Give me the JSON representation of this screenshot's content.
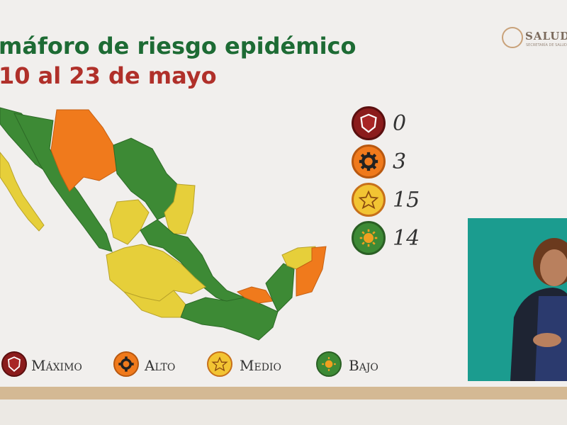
{
  "title": {
    "line1": "máforo de riesgo epidémico",
    "line2": "10 al 23 de mayo"
  },
  "logo": {
    "text": "SALUD",
    "subtext": "SECRETARÍA DE SALUD"
  },
  "colors": {
    "maximo": "#8b1c1c",
    "alto": "#f07a1c",
    "medio": "#e6cf3a",
    "bajo": "#3d8a35",
    "title_green": "#1d6b34",
    "title_red": "#b0302a"
  },
  "counts": [
    {
      "level": "maximo",
      "icon": "shield-icon",
      "value": "0"
    },
    {
      "level": "alto",
      "icon": "gear-icon",
      "value": "3"
    },
    {
      "level": "medio",
      "icon": "star-icon",
      "value": "15"
    },
    {
      "level": "bajo",
      "icon": "sun-icon",
      "value": "14"
    }
  ],
  "legend": [
    {
      "level": "maximo",
      "icon": "shield-icon",
      "label": "Máximo"
    },
    {
      "level": "alto",
      "icon": "gear-icon",
      "label": "Alto"
    },
    {
      "level": "medio",
      "icon": "star-icon",
      "label": "Medio"
    },
    {
      "level": "bajo",
      "icon": "sun-icon",
      "label": "Bajo"
    }
  ],
  "map": {
    "states_by_level": {
      "alto": [
        "Chihuahua",
        "Quintana Roo",
        "Tabasco"
      ],
      "medio": [
        "Baja California Sur",
        "Durango",
        "Tamaulipas",
        "Zacatecas",
        "Aguascalientes",
        "Nayarit",
        "Jalisco",
        "Guanajuato",
        "Querétaro",
        "Hidalgo",
        "Michoacán",
        "Guerrero",
        "Morelos",
        "Yucatán",
        "Colima"
      ],
      "bajo": [
        "Baja California",
        "Sonora",
        "Coahuila",
        "Nuevo León",
        "Sinaloa",
        "San Luis Potosí",
        "Veracruz",
        "Oaxaca",
        "Chiapas",
        "Campeche",
        "Puebla",
        "Tlaxcala",
        "Estado de México",
        "Ciudad de México"
      ]
    }
  }
}
